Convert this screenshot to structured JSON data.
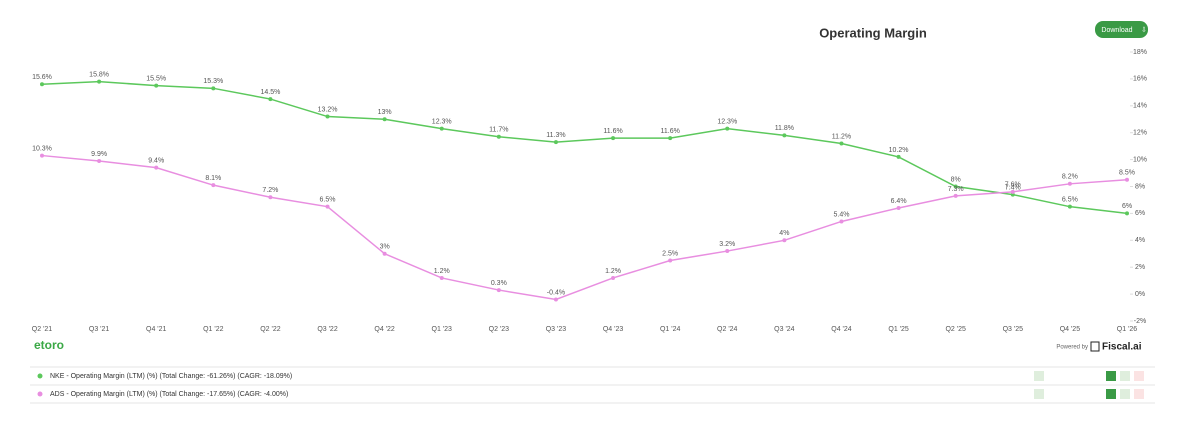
{
  "header": {
    "download": "Download"
  },
  "footer": {
    "brand": "etoro",
    "powered_by": "Powered by",
    "provider": "Fiscal.ai"
  },
  "chart_data": {
    "type": "line",
    "title": "Operating Margin",
    "categories": [
      "Q2 '21",
      "Q3 '21",
      "Q4 '21",
      "Q1 '22",
      "Q2 '22",
      "Q3 '22",
      "Q4 '22",
      "Q1 '23",
      "Q2 '23",
      "Q3 '23",
      "Q4 '23",
      "Q1 '24",
      "Q2 '24",
      "Q3 '24",
      "Q4 '24",
      "Q1 '25",
      "Q2 '25",
      "Q3 '25",
      "Q4 '25",
      "Q1 '26"
    ],
    "series": [
      {
        "name": "NKE - Operating Margin (LTM) (%) (Total Change: -61.26%) (CAGR: -18.09%)",
        "color": "#5cc85c",
        "values": [
          15.6,
          15.8,
          15.5,
          15.3,
          14.5,
          13.2,
          13,
          12.3,
          11.7,
          11.3,
          11.6,
          11.6,
          12.3,
          11.8,
          11.2,
          10.2,
          8,
          7.4,
          6.5,
          6
        ],
        "value_labels": [
          "15.6%",
          "15.8%",
          "15.5%",
          "15.3%",
          "14.5%",
          "13.2%",
          "13%",
          "12.3%",
          "11.7%",
          "11.3%",
          "11.6%",
          "11.6%",
          "12.3%",
          "11.8%",
          "11.2%",
          "10.2%",
          "8%",
          "7.4%",
          "6.5%",
          "6%"
        ]
      },
      {
        "name": "ADS - Operating Margin (LTM) (%) (Total Change: -17.65%) (CAGR: -4.00%)",
        "color": "#e88ee0",
        "values": [
          10.3,
          9.9,
          9.4,
          8.1,
          7.2,
          6.5,
          3,
          1.2,
          0.3,
          -0.4,
          1.2,
          2.5,
          3.2,
          4,
          5.4,
          6.4,
          7.3,
          7.6,
          8.2,
          8.5
        ],
        "value_labels": [
          "10.3%",
          "9.9%",
          "9.4%",
          "8.1%",
          "7.2%",
          "6.5%",
          "3%",
          "1.2%",
          "0.3%",
          "-0.4%",
          "1.2%",
          "2.5%",
          "3.2%",
          "4%",
          "5.4%",
          "6.4%",
          "7.3%",
          "7.6%",
          "8.2%",
          "8.5%"
        ]
      }
    ],
    "ylim": [
      -2,
      18
    ],
    "yticks": [
      {
        "value": 18,
        "label": "18%"
      },
      {
        "value": 16,
        "label": "16%"
      },
      {
        "value": 14,
        "label": "14%"
      },
      {
        "value": 12,
        "label": "12%"
      },
      {
        "value": 10,
        "label": "10%"
      },
      {
        "value": 8,
        "label": "8%"
      },
      {
        "value": 6,
        "label": "6%"
      },
      {
        "value": 4,
        "label": "4%"
      },
      {
        "value": 2,
        "label": "2%"
      },
      {
        "value": 0,
        "label": "0%"
      },
      {
        "value": -2,
        "label": "-2%"
      }
    ],
    "grid": false
  }
}
